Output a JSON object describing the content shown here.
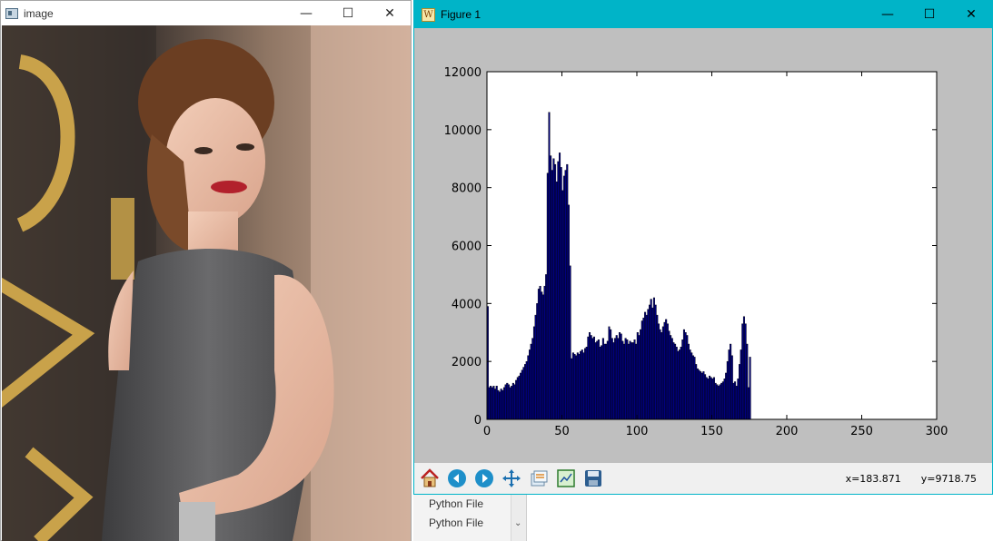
{
  "image_window": {
    "title": "image",
    "controls": {
      "minimize": "—",
      "maximize": "☐",
      "close": "✕"
    }
  },
  "figure_window": {
    "title": "Figure 1",
    "controls": {
      "minimize": "—",
      "maximize": "☐",
      "close": "✕"
    },
    "toolbar": {
      "icons": [
        "home-icon",
        "back-icon",
        "forward-icon",
        "pan-icon",
        "configure-subplots-icon",
        "zoom-icon",
        "save-icon"
      ]
    },
    "status": {
      "x": "x=183.871",
      "y": "y=9718.75"
    }
  },
  "background_panel": {
    "items": [
      "Python File",
      "Python File"
    ]
  },
  "colors": {
    "bar_fill": "#00007f",
    "axes_bg": "#ffffff",
    "figure_bg": "#bfbfbf",
    "titlebar": "#00b4c8"
  },
  "chart_data": {
    "type": "bar",
    "title": "",
    "xlabel": "",
    "ylabel": "",
    "xlim": [
      0,
      300
    ],
    "ylim": [
      0,
      12000
    ],
    "x_ticks": [
      0,
      50,
      100,
      150,
      200,
      250,
      300
    ],
    "y_ticks": [
      0,
      2000,
      4000,
      6000,
      8000,
      10000,
      12000
    ],
    "bin_start": 0,
    "bin_width": 1,
    "values": [
      3900,
      1100,
      1150,
      1100,
      1150,
      1050,
      1150,
      1000,
      950,
      1050,
      1000,
      1100,
      1200,
      1250,
      1200,
      1100,
      1150,
      1250,
      1200,
      1350,
      1450,
      1500,
      1600,
      1700,
      1800,
      1900,
      2000,
      2200,
      2400,
      2600,
      2800,
      3200,
      3600,
      4000,
      4500,
      4600,
      4400,
      4300,
      4600,
      5000,
      8500,
      10600,
      9100,
      8600,
      9000,
      8800,
      8200,
      8900,
      9200,
      8700,
      7900,
      8400,
      8600,
      8800,
      7400,
      5300,
      2100,
      2300,
      2250,
      2200,
      2300,
      2250,
      2350,
      2400,
      2300,
      2450,
      2500,
      2850,
      3000,
      2900,
      2800,
      2850,
      2650,
      2700,
      2750,
      2500,
      2550,
      2800,
      2600,
      2600,
      2700,
      3200,
      3100,
      2800,
      2650,
      2800,
      2900,
      2800,
      3000,
      2950,
      2700,
      2600,
      2800,
      2750,
      2600,
      2700,
      2650,
      2650,
      2750,
      2600,
      3000,
      2900,
      3100,
      3400,
      3500,
      3700,
      3600,
      3800,
      3950,
      4150,
      3850,
      4200,
      3950,
      3600,
      3300,
      3100,
      3000,
      3200,
      3350,
      3450,
      3300,
      3050,
      2900,
      2800,
      2650,
      2600,
      2500,
      2350,
      2400,
      2500,
      2750,
      3100,
      3000,
      2900,
      2600,
      2400,
      2300,
      2200,
      2150,
      1900,
      1750,
      1700,
      1650,
      1600,
      1650,
      1550,
      1450,
      1400,
      1500,
      1450,
      1400,
      1450,
      1250,
      1200,
      1150,
      1200,
      1250,
      1300,
      1400,
      1600,
      2000,
      2400,
      2600,
      2200,
      1250,
      1300,
      1150,
      1400,
      1900,
      2400,
      3300,
      3550,
      3300,
      2600,
      1100,
      2150
    ],
    "note_series_color": "#00007f"
  }
}
